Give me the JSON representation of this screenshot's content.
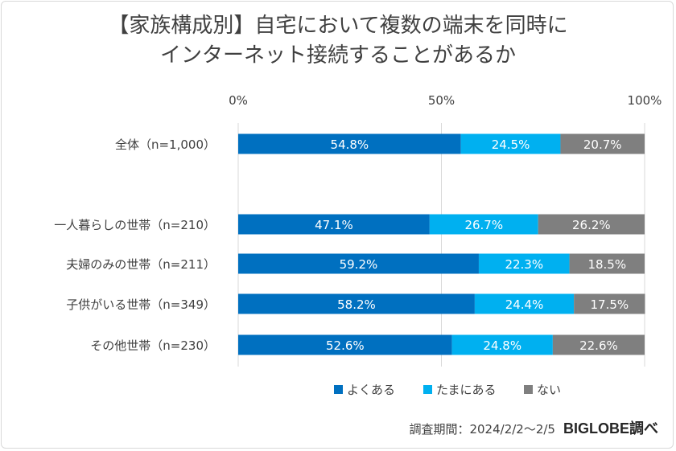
{
  "chart_data": {
    "type": "bar",
    "orientation": "horizontal",
    "stacked": true,
    "title": [
      "【家族構成別】自宅において複数の端末を同時に",
      "インターネット接続することがあるか"
    ],
    "categories": [
      "全体（n=1,000）",
      "一人暮らしの世帯（n=210）",
      "夫婦のみの世帯（n=211）",
      "子供がいる世帯（n=349）",
      "その他世帯（n=230）"
    ],
    "series": [
      {
        "name": "よくある",
        "values": [
          54.8,
          47.1,
          59.2,
          58.2,
          52.6
        ],
        "color": "#0070c0"
      },
      {
        "name": "たまにある",
        "values": [
          24.5,
          26.7,
          22.3,
          24.4,
          24.8
        ],
        "color": "#00b0f0"
      },
      {
        "name": "ない",
        "values": [
          20.7,
          26.2,
          18.5,
          17.5,
          22.6
        ],
        "color": "#7f7f7f"
      }
    ],
    "x_ticks": [
      "0%",
      "50%",
      "100%"
    ],
    "xlim": [
      0,
      100
    ],
    "grid": true,
    "legend_position": "bottom",
    "value_label_suffix": "%"
  },
  "source": {
    "text": "調査期間：2024/2/2～2/5",
    "brand": "BIGLOBE調べ"
  }
}
